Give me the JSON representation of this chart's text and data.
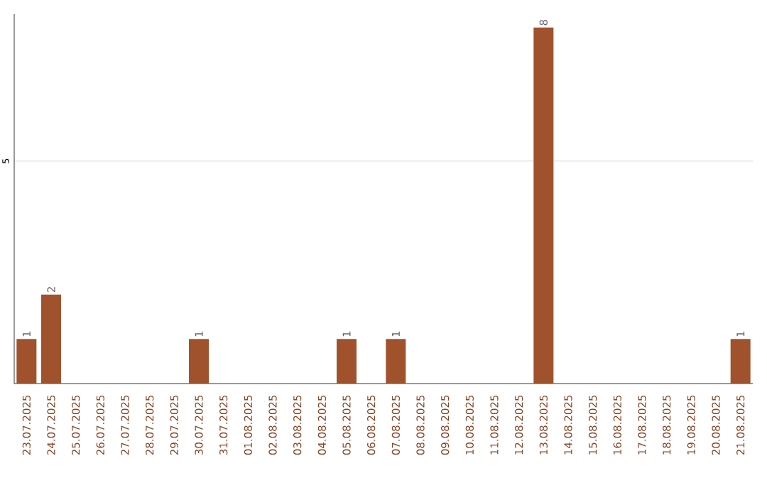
{
  "chart_data": {
    "type": "bar",
    "categories": [
      "23.07.2025",
      "24.07.2025",
      "25.07.2025",
      "26.07.2025",
      "27.07.2025",
      "28.07.2025",
      "29.07.2025",
      "30.07.2025",
      "31.07.2025",
      "01.08.2025",
      "02.08.2025",
      "03.08.2025",
      "04.08.2025",
      "05.08.2025",
      "06.08.2025",
      "07.08.2025",
      "08.08.2025",
      "09.08.2025",
      "10.08.2025",
      "11.08.2025",
      "12.08.2025",
      "13.08.2025",
      "14.08.2025",
      "15.08.2025",
      "16.08.2025",
      "17.08.2025",
      "18.08.2025",
      "19.08.2025",
      "20.08.2025",
      "21.08.2025"
    ],
    "values": [
      1,
      2,
      0,
      0,
      0,
      0,
      0,
      1,
      0,
      0,
      0,
      0,
      0,
      1,
      0,
      1,
      0,
      0,
      0,
      0,
      0,
      8,
      0,
      0,
      0,
      0,
      0,
      0,
      0,
      1
    ],
    "color": "#a0522d",
    "value_labels": [
      "1",
      "2",
      null,
      null,
      null,
      null,
      null,
      "1",
      null,
      null,
      null,
      null,
      null,
      "1",
      null,
      "1",
      null,
      null,
      null,
      null,
      null,
      "8",
      null,
      null,
      null,
      null,
      null,
      null,
      null,
      "1"
    ],
    "ylim": [
      0,
      8.3
    ],
    "yticks": [
      5
    ],
    "grid": "y"
  }
}
